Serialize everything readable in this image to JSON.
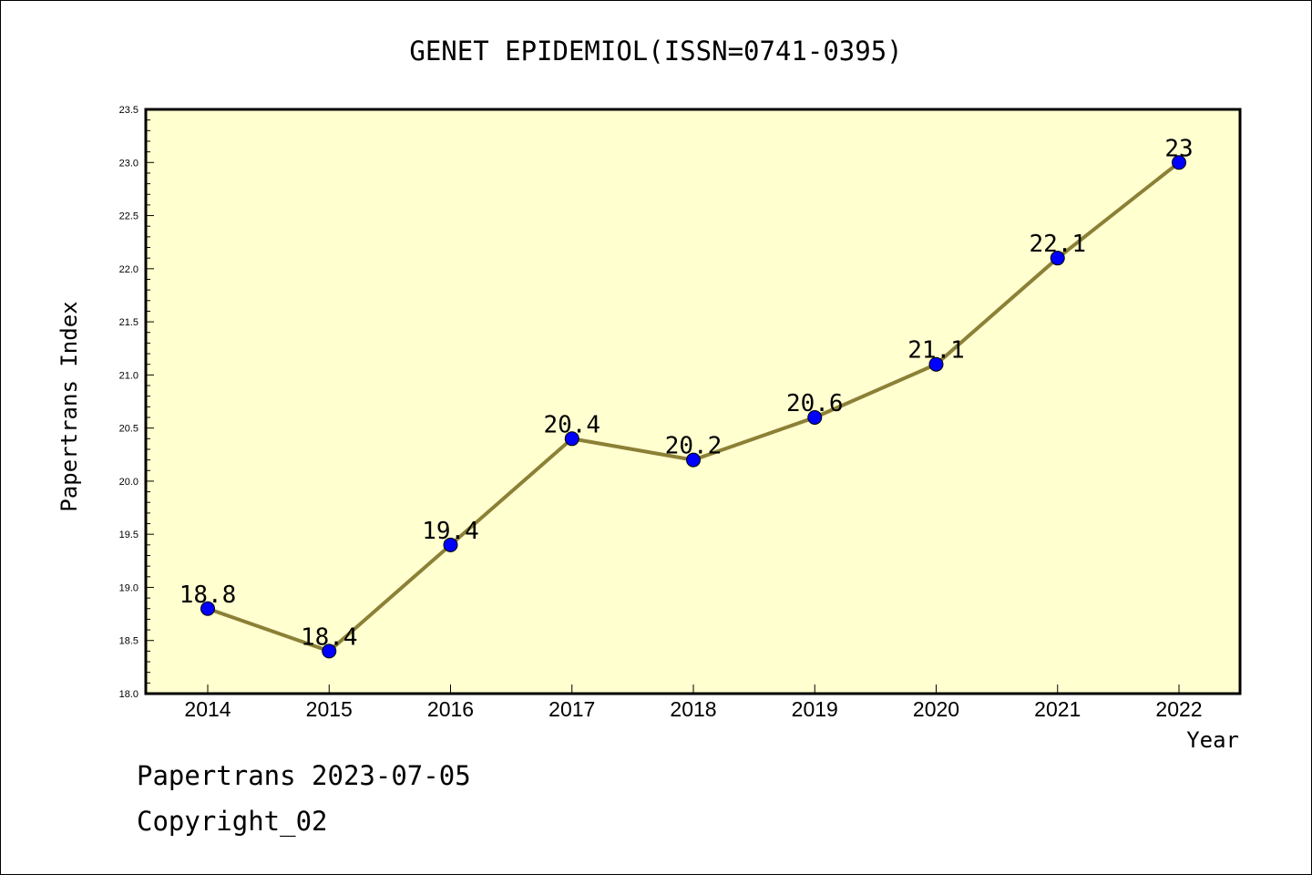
{
  "chart_data": {
    "type": "line",
    "title": "GENET EPIDEMIOL(ISSN=0741-0395)",
    "xlabel": "Year",
    "ylabel": "Papertrans Index",
    "categories": [
      "2014",
      "2015",
      "2016",
      "2017",
      "2018",
      "2019",
      "2020",
      "2021",
      "2022"
    ],
    "values": [
      18.8,
      18.4,
      19.4,
      20.4,
      20.2,
      20.6,
      21.1,
      22.1,
      23
    ],
    "data_labels": [
      "18.8",
      "18.4",
      "19.4",
      "20.4",
      "20.2",
      "20.6",
      "21.1",
      "22.1",
      "23"
    ],
    "ylim": [
      18.0,
      23.5
    ],
    "y_ticks": [
      "18.0",
      "18.5",
      "19.0",
      "19.5",
      "20.0",
      "20.5",
      "21.0",
      "21.5",
      "22.0",
      "22.5",
      "23.0",
      "23.5"
    ],
    "grid": false,
    "colors": {
      "plot_background": "#ffffd0",
      "line": "#8b8036",
      "marker": "#0000ff"
    }
  },
  "footer": {
    "line1": "Papertrans 2023-07-05",
    "line2": "Copyright_02"
  }
}
